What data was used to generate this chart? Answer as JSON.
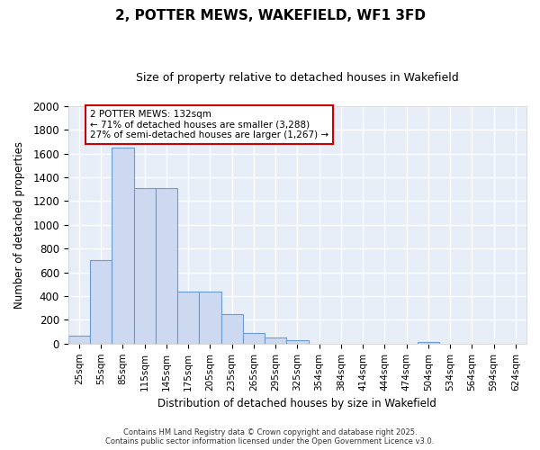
{
  "title": "2, POTTER MEWS, WAKEFIELD, WF1 3FD",
  "subtitle": "Size of property relative to detached houses in Wakefield",
  "xlabel": "Distribution of detached houses by size in Wakefield",
  "ylabel": "Number of detached properties",
  "categories": [
    "25sqm",
    "55sqm",
    "85sqm",
    "115sqm",
    "145sqm",
    "175sqm",
    "205sqm",
    "235sqm",
    "265sqm",
    "295sqm",
    "325sqm",
    "354sqm",
    "384sqm",
    "414sqm",
    "444sqm",
    "474sqm",
    "504sqm",
    "534sqm",
    "564sqm",
    "594sqm",
    "624sqm"
  ],
  "values": [
    65,
    700,
    1650,
    1310,
    1310,
    440,
    440,
    250,
    90,
    55,
    30,
    0,
    0,
    0,
    0,
    0,
    15,
    0,
    0,
    0,
    0
  ],
  "bar_color": "#ccd9f0",
  "bar_edge_color": "#6b9cd4",
  "plot_bg_color": "#e8eef8",
  "fig_bg_color": "#ffffff",
  "grid_color": "#ffffff",
  "annotation_text": "2 POTTER MEWS: 132sqm\n← 71% of detached houses are smaller (3,288)\n27% of semi-detached houses are larger (1,267) →",
  "annotation_box_color": "#ffffff",
  "annotation_box_edge_color": "#cc0000",
  "ylim": [
    0,
    2000
  ],
  "yticks": [
    0,
    200,
    400,
    600,
    800,
    1000,
    1200,
    1400,
    1600,
    1800,
    2000
  ],
  "footer_line1": "Contains HM Land Registry data © Crown copyright and database right 2025.",
  "footer_line2": "Contains public sector information licensed under the Open Government Licence v3.0."
}
